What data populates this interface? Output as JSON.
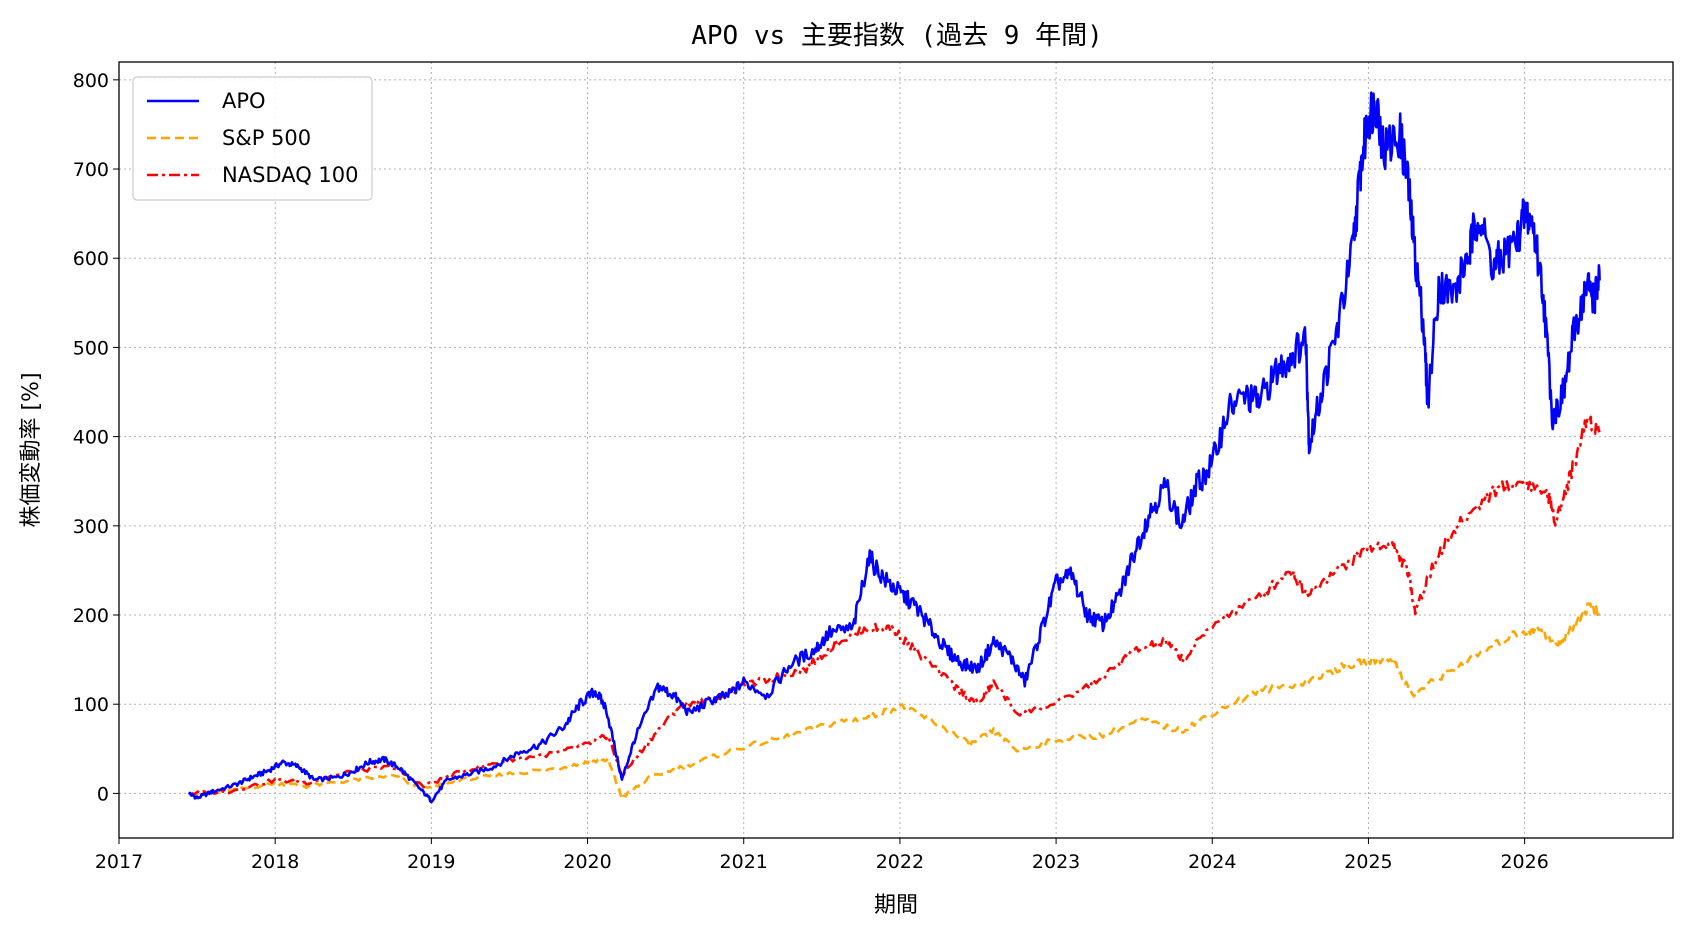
{
  "chart_data": {
    "type": "line",
    "title": "APO vs 主要指数 (過去 9 年間)",
    "xlabel": "期間",
    "ylabel": "株価変動率 [%]",
    "xlim": [
      2017.0,
      2026.95
    ],
    "ylim": [
      -50,
      820
    ],
    "x_ticks": [
      "2017",
      "2018",
      "2019",
      "2020",
      "2021",
      "2022",
      "2023",
      "2024",
      "2025",
      "2026"
    ],
    "y_ticks": [
      "0",
      "100",
      "200",
      "300",
      "400",
      "500",
      "600",
      "700",
      "800"
    ],
    "grid": true,
    "legend_position": "top-left",
    "series": [
      {
        "name": "APO",
        "color": "#0000ff",
        "style": "solid",
        "points": [
          [
            2017.45,
            0
          ],
          [
            2017.5,
            -5
          ],
          [
            2017.6,
            2
          ],
          [
            2017.75,
            10
          ],
          [
            2017.85,
            18
          ],
          [
            2017.95,
            25
          ],
          [
            2018.05,
            35
          ],
          [
            2018.15,
            30
          ],
          [
            2018.25,
            15
          ],
          [
            2018.4,
            18
          ],
          [
            2018.5,
            25
          ],
          [
            2018.6,
            35
          ],
          [
            2018.7,
            38
          ],
          [
            2018.8,
            28
          ],
          [
            2018.9,
            10
          ],
          [
            2019.0,
            -8
          ],
          [
            2019.1,
            15
          ],
          [
            2019.25,
            22
          ],
          [
            2019.4,
            30
          ],
          [
            2019.55,
            45
          ],
          [
            2019.7,
            55
          ],
          [
            2019.85,
            75
          ],
          [
            2019.95,
            100
          ],
          [
            2020.05,
            115
          ],
          [
            2020.12,
            95
          ],
          [
            2020.22,
            15
          ],
          [
            2020.3,
            60
          ],
          [
            2020.45,
            120
          ],
          [
            2020.55,
            110
          ],
          [
            2020.65,
            90
          ],
          [
            2020.8,
            105
          ],
          [
            2020.9,
            110
          ],
          [
            2021.0,
            125
          ],
          [
            2021.15,
            110
          ],
          [
            2021.3,
            145
          ],
          [
            2021.45,
            160
          ],
          [
            2021.55,
            180
          ],
          [
            2021.7,
            185
          ],
          [
            2021.8,
            265
          ],
          [
            2021.9,
            240
          ],
          [
            2022.0,
            225
          ],
          [
            2022.1,
            210
          ],
          [
            2022.2,
            185
          ],
          [
            2022.3,
            160
          ],
          [
            2022.4,
            145
          ],
          [
            2022.5,
            140
          ],
          [
            2022.6,
            170
          ],
          [
            2022.7,
            155
          ],
          [
            2022.8,
            125
          ],
          [
            2022.9,
            180
          ],
          [
            2023.0,
            235
          ],
          [
            2023.1,
            245
          ],
          [
            2023.2,
            200
          ],
          [
            2023.3,
            190
          ],
          [
            2023.4,
            220
          ],
          [
            2023.5,
            270
          ],
          [
            2023.6,
            315
          ],
          [
            2023.7,
            345
          ],
          [
            2023.8,
            300
          ],
          [
            2023.9,
            345
          ],
          [
            2024.0,
            370
          ],
          [
            2024.1,
            430
          ],
          [
            2024.2,
            445
          ],
          [
            2024.3,
            440
          ],
          [
            2024.4,
            470
          ],
          [
            2024.5,
            490
          ],
          [
            2024.6,
            510
          ],
          [
            2024.62,
            390
          ],
          [
            2024.7,
            450
          ],
          [
            2024.8,
            520
          ],
          [
            2024.9,
            610
          ],
          [
            2024.95,
            700
          ],
          [
            2025.0,
            760
          ],
          [
            2025.05,
            775
          ],
          [
            2025.1,
            720
          ],
          [
            2025.2,
            740
          ],
          [
            2025.25,
            690
          ],
          [
            2025.3,
            600
          ],
          [
            2025.35,
            530
          ],
          [
            2025.38,
            440
          ],
          [
            2025.45,
            570
          ],
          [
            2025.55,
            560
          ],
          [
            2025.65,
            610
          ],
          [
            2025.7,
            650
          ],
          [
            2025.8,
            590
          ],
          [
            2025.85,
            600
          ],
          [
            2025.95,
            620
          ],
          [
            2026.0,
            650
          ],
          [
            2026.05,
            640
          ],
          [
            2026.12,
            560
          ],
          [
            2026.18,
            420
          ],
          [
            2026.25,
            450
          ],
          [
            2026.32,
            520
          ],
          [
            2026.4,
            570
          ],
          [
            2026.45,
            555
          ],
          [
            2026.48,
            575
          ]
        ]
      },
      {
        "name": "S&P 500",
        "color": "#ffa500",
        "style": "dashed",
        "points": [
          [
            2017.45,
            0
          ],
          [
            2017.7,
            2
          ],
          [
            2018.0,
            12
          ],
          [
            2018.2,
            8
          ],
          [
            2018.5,
            15
          ],
          [
            2018.75,
            20
          ],
          [
            2018.95,
            5
          ],
          [
            2019.2,
            15
          ],
          [
            2019.5,
            22
          ],
          [
            2019.8,
            28
          ],
          [
            2020.0,
            35
          ],
          [
            2020.13,
            38
          ],
          [
            2020.22,
            -5
          ],
          [
            2020.4,
            18
          ],
          [
            2020.7,
            35
          ],
          [
            2021.0,
            52
          ],
          [
            2021.3,
            65
          ],
          [
            2021.6,
            80
          ],
          [
            2021.8,
            85
          ],
          [
            2022.0,
            98
          ],
          [
            2022.2,
            82
          ],
          [
            2022.45,
            55
          ],
          [
            2022.6,
            70
          ],
          [
            2022.75,
            48
          ],
          [
            2023.0,
            60
          ],
          [
            2023.3,
            65
          ],
          [
            2023.55,
            82
          ],
          [
            2023.8,
            70
          ],
          [
            2024.0,
            90
          ],
          [
            2024.3,
            115
          ],
          [
            2024.6,
            125
          ],
          [
            2024.8,
            140
          ],
          [
            2025.0,
            148
          ],
          [
            2025.15,
            152
          ],
          [
            2025.28,
            110
          ],
          [
            2025.45,
            130
          ],
          [
            2025.7,
            155
          ],
          [
            2025.95,
            180
          ],
          [
            2026.1,
            185
          ],
          [
            2026.2,
            165
          ],
          [
            2026.3,
            185
          ],
          [
            2026.42,
            212
          ],
          [
            2026.48,
            200
          ]
        ]
      },
      {
        "name": "NASDAQ 100",
        "color": "#ff0000",
        "style": "dashdot",
        "points": [
          [
            2017.45,
            0
          ],
          [
            2017.7,
            2
          ],
          [
            2018.0,
            15
          ],
          [
            2018.2,
            12
          ],
          [
            2018.5,
            25
          ],
          [
            2018.75,
            30
          ],
          [
            2018.95,
            8
          ],
          [
            2019.2,
            25
          ],
          [
            2019.5,
            38
          ],
          [
            2019.8,
            45
          ],
          [
            2020.0,
            55
          ],
          [
            2020.13,
            65
          ],
          [
            2020.22,
            20
          ],
          [
            2020.4,
            60
          ],
          [
            2020.6,
            100
          ],
          [
            2020.8,
            105
          ],
          [
            2021.0,
            120
          ],
          [
            2021.2,
            130
          ],
          [
            2021.4,
            140
          ],
          [
            2021.6,
            170
          ],
          [
            2021.8,
            185
          ],
          [
            2021.95,
            185
          ],
          [
            2022.1,
            160
          ],
          [
            2022.35,
            120
          ],
          [
            2022.5,
            100
          ],
          [
            2022.6,
            125
          ],
          [
            2022.75,
            90
          ],
          [
            2023.0,
            100
          ],
          [
            2023.3,
            130
          ],
          [
            2023.5,
            160
          ],
          [
            2023.7,
            170
          ],
          [
            2023.82,
            150
          ],
          [
            2024.0,
            190
          ],
          [
            2024.3,
            220
          ],
          [
            2024.5,
            250
          ],
          [
            2024.6,
            225
          ],
          [
            2024.8,
            250
          ],
          [
            2025.0,
            275
          ],
          [
            2025.15,
            280
          ],
          [
            2025.25,
            250
          ],
          [
            2025.3,
            205
          ],
          [
            2025.45,
            270
          ],
          [
            2025.6,
            305
          ],
          [
            2025.8,
            340
          ],
          [
            2026.0,
            350
          ],
          [
            2026.15,
            335
          ],
          [
            2026.2,
            305
          ],
          [
            2026.3,
            360
          ],
          [
            2026.4,
            420
          ],
          [
            2026.48,
            405
          ]
        ]
      }
    ]
  }
}
